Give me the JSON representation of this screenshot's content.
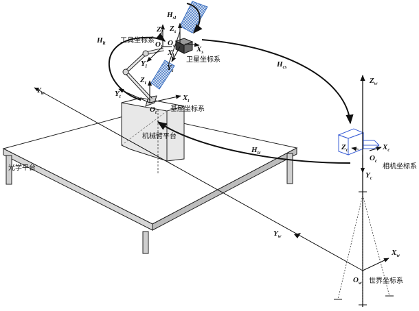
{
  "labels": {
    "tool_frame": "工具坐标系",
    "satellite_frame": "卫星坐标系",
    "base_frame": "基座坐标系",
    "arm_platform": "机械臂平台",
    "camera_frame": "相机坐标系",
    "optical_platform": "光学平台",
    "world_frame": "世界坐标系"
  },
  "transforms": {
    "H_sl": {
      "main": "H",
      "sub": "sl"
    },
    "H_lt": {
      "main": "H",
      "sub": "lt"
    },
    "H_cs": {
      "main": "H",
      "sub": "cs"
    },
    "H_tc": {
      "main": "H",
      "sub": "tc"
    }
  },
  "axes": {
    "tool": {
      "Z": {
        "main": "Z",
        "sub": "l"
      },
      "O": {
        "main": "O",
        "sub": "l"
      },
      "Y": {
        "main": "Y",
        "sub": "l"
      },
      "X": {
        "main": "X",
        "sub": "l"
      }
    },
    "satellite": {
      "Z": {
        "main": "Z",
        "sub": "s"
      },
      "O": {
        "main": "O",
        "sub": "s"
      },
      "X": {
        "main": "X",
        "sub": "s"
      },
      "Y": {
        "main": "Y",
        "sub": "s"
      }
    },
    "base": {
      "Z": {
        "main": "Z",
        "sub": "t"
      },
      "Y": {
        "main": "Y",
        "sub": "t"
      },
      "X": {
        "main": "X",
        "sub": "t"
      },
      "O": {
        "main": "O",
        "sub": "t"
      }
    },
    "camera": {
      "Z": {
        "main": "Z",
        "sub": "c"
      },
      "X": {
        "main": "X",
        "sub": "c"
      },
      "O": {
        "main": "O",
        "sub": "c"
      },
      "Y": {
        "main": "Y",
        "sub": "c"
      }
    },
    "world": {
      "Z": {
        "main": "Z",
        "sub": "w"
      },
      "Y_left": {
        "main": "Y",
        "sub": "w"
      },
      "Y_mid": {
        "main": "Y",
        "sub": "w"
      },
      "X": {
        "main": "X",
        "sub": "w"
      },
      "O": {
        "main": "O",
        "sub": "w"
      }
    }
  }
}
